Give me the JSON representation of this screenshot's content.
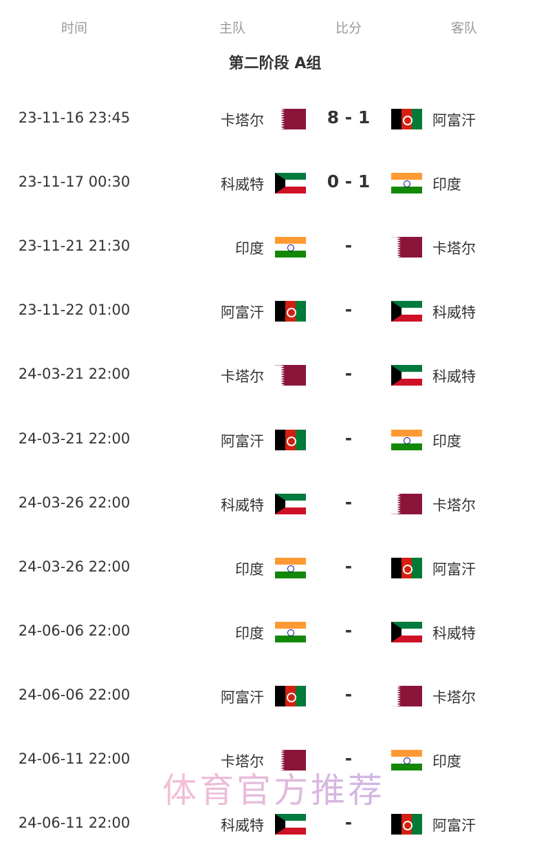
{
  "header": {
    "time": "时间",
    "home": "主队",
    "score": "比分",
    "away": "客队"
  },
  "group_title": "第二阶段 A组",
  "matches": [
    {
      "time": "23-11-16 23:45",
      "home": "卡塔尔",
      "home_flag": "qat",
      "score": "8 - 1",
      "away": "阿富汗",
      "away_flag": "afg"
    },
    {
      "time": "23-11-17 00:30",
      "home": "科威特",
      "home_flag": "kuw",
      "score": "0 - 1",
      "away": "印度",
      "away_flag": "ind"
    },
    {
      "time": "23-11-21 21:30",
      "home": "印度",
      "home_flag": "ind",
      "score": "-",
      "away": "卡塔尔",
      "away_flag": "qat"
    },
    {
      "time": "23-11-22 01:00",
      "home": "阿富汗",
      "home_flag": "afg",
      "score": "-",
      "away": "科威特",
      "away_flag": "kuw"
    },
    {
      "time": "24-03-21 22:00",
      "home": "卡塔尔",
      "home_flag": "qat",
      "score": "-",
      "away": "科威特",
      "away_flag": "kuw"
    },
    {
      "time": "24-03-21 22:00",
      "home": "阿富汗",
      "home_flag": "afg",
      "score": "-",
      "away": "印度",
      "away_flag": "ind"
    },
    {
      "time": "24-03-26 22:00",
      "home": "科威特",
      "home_flag": "kuw",
      "score": "-",
      "away": "卡塔尔",
      "away_flag": "qat"
    },
    {
      "time": "24-03-26 22:00",
      "home": "印度",
      "home_flag": "ind",
      "score": "-",
      "away": "阿富汗",
      "away_flag": "afg"
    },
    {
      "time": "24-06-06 22:00",
      "home": "印度",
      "home_flag": "ind",
      "score": "-",
      "away": "科威特",
      "away_flag": "kuw"
    },
    {
      "time": "24-06-06 22:00",
      "home": "阿富汗",
      "home_flag": "afg",
      "score": "-",
      "away": "卡塔尔",
      "away_flag": "qat"
    },
    {
      "time": "24-06-11 22:00",
      "home": "卡塔尔",
      "home_flag": "qat",
      "score": "-",
      "away": "印度",
      "away_flag": "ind"
    },
    {
      "time": "24-06-11 22:00",
      "home": "科威特",
      "home_flag": "kuw",
      "score": "-",
      "away": "阿富汗",
      "away_flag": "afg"
    }
  ],
  "watermark": "体育官方推荐"
}
